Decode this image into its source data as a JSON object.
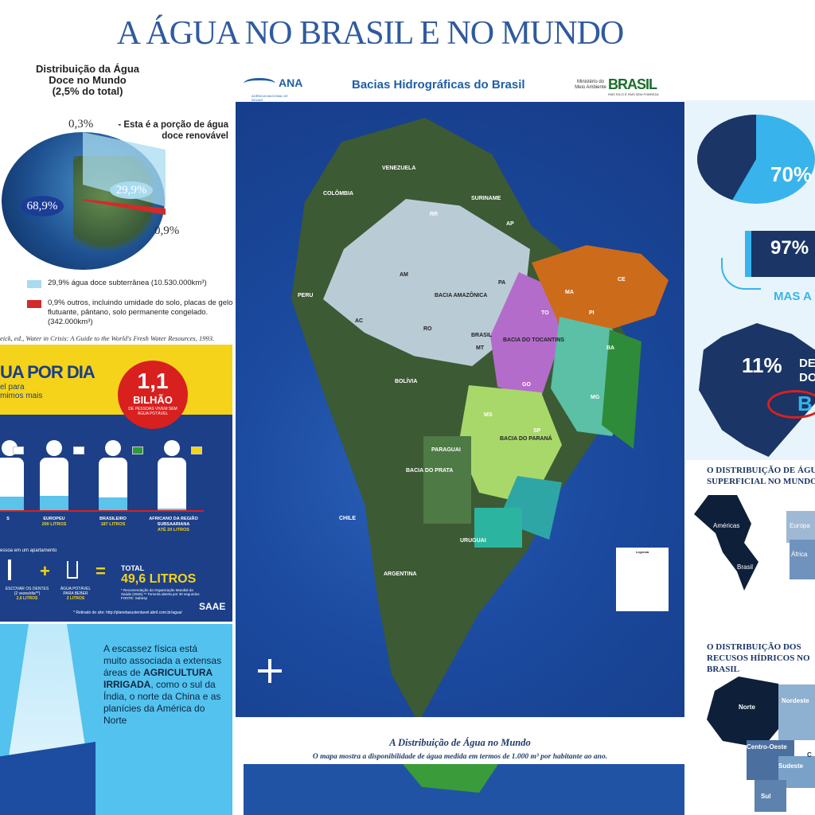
{
  "title": "A ÁGUA NO BRASIL E NO MUNDO",
  "globe": {
    "title_lines": [
      "Distribuição da Água",
      "Doce no Mundo",
      "(2,5% do total)"
    ],
    "pct_03": "0,3%",
    "pct_03_desc": "- Esta é a porção de água doce renovável",
    "pct_689": "68,9%",
    "pct_299": "29,9%",
    "pct_09": "0,9%",
    "legend": [
      {
        "color": "#a8daf0",
        "text": "29,9% água doce subterrânea (10.530.000km³)"
      },
      {
        "color": "#d32a2a",
        "text": "0,9% outros, incluindo umidade do solo, placas de gelo flutuante, pântano, solo permanente congelado. (342.000km³)"
      }
    ],
    "source": "eick, ed., Water in Crisis: A Guide to the World's Fresh Water Resources, 1993."
  },
  "perday": {
    "title": "UA POR DIA",
    "sub1": "el para",
    "sub2": "mimos mais",
    "bubble_num": "1,1",
    "bubble_unit": "BILHÃO",
    "bubble_desc": "DE PESSOAS VIVEM SEM ÁGUA POTÁVEL",
    "people": [
      {
        "label": "S",
        "value": "",
        "fill": 0.28
      },
      {
        "label": "EUROPEU",
        "value": "200 LITROS",
        "fill": 0.3
      },
      {
        "label": "BRASILEIRO",
        "value": "187 LITROS",
        "fill": 0.26
      },
      {
        "label": "AFRICANO DA REGIÃO SUBSAARIANA",
        "value": "ATÉ 20 LITROS",
        "fill": 0.05
      }
    ],
    "apt_text": "essoa em um apartamento",
    "plus": "+",
    "equals": "=",
    "dentes_text": "ESCOVAR OS DENTES (2 vezes/dia**)",
    "dentes_value": "2,6 LITROS",
    "beber_text": "ÁGUA POTÁVEL PARA BEBER",
    "beber_value": "2 LITROS",
    "total_label": "TOTAL",
    "total_value": "49,6 LITROS",
    "notes": "* Recomendação da Organização Mundial da Saúde (OMS) ** Torneira aberta por 30 segundos FONTE: Sabesp",
    "source": "* Retirado do site: http://planetasustentavel.abril.com.br/agua/",
    "saae": "SAAE"
  },
  "scarcity": {
    "text_before": "A escassez física está muito associada a extensas áreas de ",
    "text_bold": "AGRICULTURA IRRIGADA",
    "text_after": ", como o sul da Índia, o norte da China e as planícies da América do Norte"
  },
  "map": {
    "ana": "ANA",
    "ana_sub": "AGÊNCIA NACIONAL DE ÁGUAS",
    "title": "Bacias Hidrográficas do Brasil",
    "mma": "Ministério do Meio Ambiente",
    "brasil": "BRASIL",
    "brasil_sub": "PAÍS RICO É PAÍS SEM POBREZA",
    "legend_title": "Legenda",
    "labels": {
      "amazonica": "BACIA AMAZÔNICA",
      "brasil": "BRASIL",
      "tocantins": "BACIA DO TOCANTINS",
      "parana": "BACIA DO PARANÁ",
      "prata": "BACIA DO PRATA",
      "paraguai": "PARAGUAI",
      "argentina": "ARGENTINA",
      "bolivia": "BOLÍVIA",
      "peru": "PERU",
      "colombia": "COLÔMBIA",
      "venezuela": "VENEZUELA",
      "suriname": "SURINAME",
      "uruguai": "URUGUAI",
      "chile": "CHILE",
      "ma": "MA",
      "pi": "PI",
      "ce": "CE",
      "ba": "BA",
      "mg": "MG",
      "ms": "MS",
      "sp": "SP",
      "am": "AM",
      "pa": "PA",
      "to": "TO",
      "go": "GO",
      "mt": "MT",
      "ac": "AC",
      "ro": "RO",
      "rr": "RR",
      "ap": "AP"
    }
  },
  "world": {
    "title": "A Distribuição de Água no Mundo",
    "subtitle": "O mapa mostra a disponibilidade de água medida em termos de 1.000 m³ por habitante ao ano."
  },
  "right": {
    "pie_label": "70%",
    "pct97": "97%",
    "mas": "MAS A",
    "pct11": "11%",
    "pct11_de": "DE",
    "pct11_do": "DO",
    "pct11_b": "B",
    "sup_title": "O DISTRIBUIÇÃO DE ÁGUA SUPERFICIAL NO MUNDO",
    "sup_americas": "Américas",
    "sup_europa": "Europa",
    "sup_africa": "África",
    "sup_brasil": "Brasil",
    "rec_title": "O DISTRIBUIÇÃO DOS RECUSOS HÍDRICOS NO BRASIL",
    "rec_norte": "Norte",
    "rec_nordeste": "Nordeste",
    "rec_co": "Centro-Oeste",
    "rec_sudeste": "Sudeste",
    "rec_sul": "Sul",
    "rec_c": "C"
  }
}
